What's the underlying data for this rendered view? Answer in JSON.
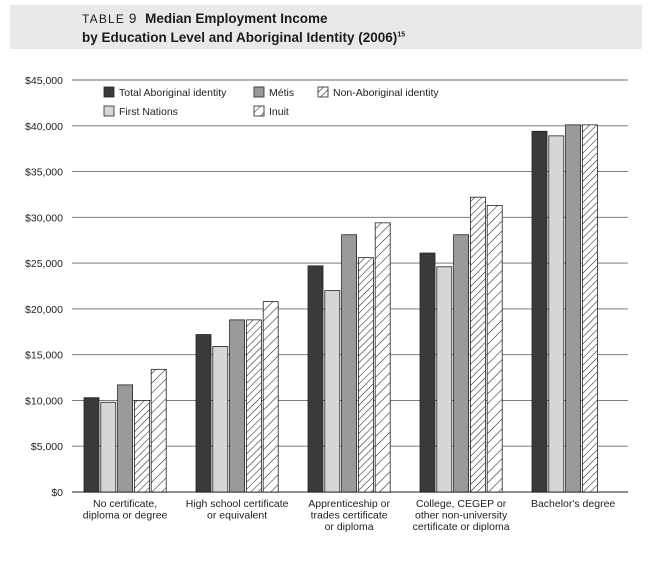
{
  "header": {
    "table_label": "TABLE",
    "table_number": "9",
    "title_line1": "Median Employment Income",
    "title_line2": "by Education Level and Aboriginal Identity (2006)",
    "footnote": "15"
  },
  "chart_data": {
    "type": "bar",
    "ylabel": "",
    "xlabel": "",
    "ylim": [
      0,
      45000
    ],
    "ytick_step": 5000,
    "ytick_labels": [
      "$0",
      "$5,000",
      "$10,000",
      "$15,000",
      "$20,000",
      "$25,000",
      "$30,000",
      "$35,000",
      "$40,000",
      "$45,000"
    ],
    "grid": true,
    "legend_position": "top-left",
    "categories": [
      [
        "No certificate,",
        "diploma or degree"
      ],
      [
        "High school certificate",
        "or equivalent"
      ],
      [
        "Apprenticeship or",
        "trades certificate",
        "or diploma"
      ],
      [
        "College, CEGEP or",
        "other non-university",
        "certificate or diploma"
      ],
      [
        "Bachelor's degree"
      ]
    ],
    "series": [
      {
        "name": "Total Aboriginal identity",
        "fill": "#3a3a3a",
        "pattern": "solid",
        "values": [
          10300,
          17200,
          24700,
          26100,
          39400
        ]
      },
      {
        "name": "First Nations",
        "fill": "#d6d6d6",
        "pattern": "solid",
        "values": [
          9800,
          15900,
          22000,
          24600,
          38900
        ]
      },
      {
        "name": "Métis",
        "fill": "#9a9a9a",
        "pattern": "solid",
        "values": [
          11700,
          18800,
          28100,
          28100,
          40100
        ]
      },
      {
        "name": "Non-Aboriginal identity",
        "fill": "#ffffff",
        "pattern": "dense-hatch",
        "values": [
          10000,
          18800,
          25600,
          32200,
          40100
        ]
      },
      {
        "name": "Inuit",
        "fill": "#ffffff",
        "pattern": "hatch",
        "values": [
          13400,
          20800,
          29400,
          31300,
          null
        ]
      }
    ]
  }
}
